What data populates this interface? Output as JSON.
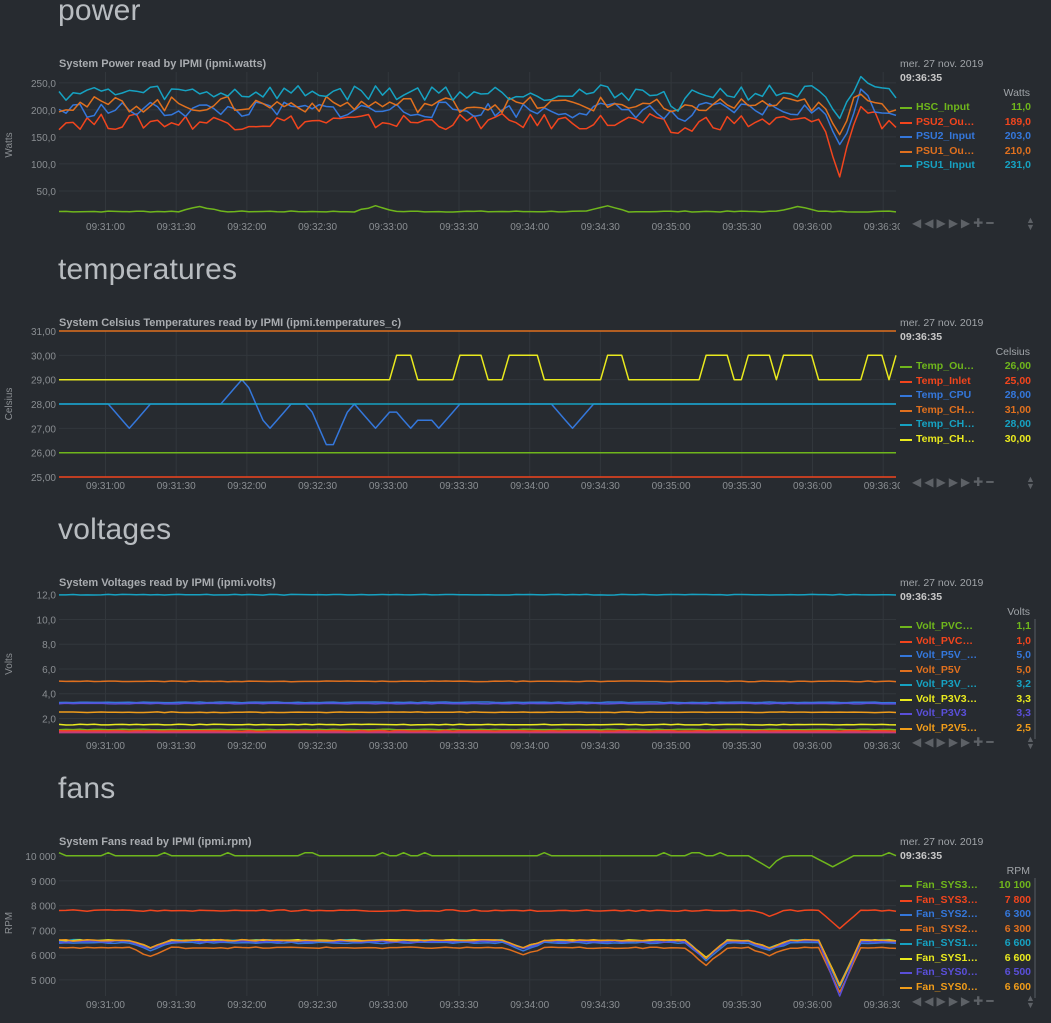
{
  "legend_date": "mer. 27 nov. 2019",
  "legend_time": "09:36:35",
  "time_ticks": [
    "09:31:00",
    "09:31:30",
    "09:32:00",
    "09:32:30",
    "09:33:00",
    "09:33:30",
    "09:34:00",
    "09:34:30",
    "09:35:00",
    "09:35:30",
    "09:36:00",
    "09:36:30"
  ],
  "colors": {
    "green": "#6fb61c",
    "red": "#f2451d",
    "blue": "#3477db",
    "orange": "#e0701e",
    "teal": "#16a2c2",
    "yellow": "#eaea1e",
    "purple": "#5a4fd9",
    "amber": "#f09c1a"
  },
  "toolbox_icons": [
    "rewind-icon",
    "play-icon",
    "fast-forward-icon",
    "zoom-in-icon",
    "zoom-out-icon"
  ],
  "sections": [
    {
      "id": "power",
      "title": "power"
    },
    {
      "id": "temperatures",
      "title": "temperatures"
    },
    {
      "id": "voltages",
      "title": "voltages"
    },
    {
      "id": "fans",
      "title": "fans"
    }
  ],
  "chart_data": [
    {
      "id": "power",
      "type": "line",
      "title": "System Power read by IPMI (ipmi.watts)",
      "ylabel": "Watts",
      "units": "Watts",
      "ylim": [
        0,
        270
      ],
      "yticks": [
        50,
        100,
        150,
        200,
        250
      ],
      "ytick_labels": [
        "50,0",
        "100,0",
        "150,0",
        "200,0",
        "250,0"
      ],
      "x_range": [
        "09:30:40",
        "09:36:35"
      ],
      "series": [
        {
          "name": "HSC_Input",
          "label": "HSC_Input",
          "value": "11,0",
          "color": "green",
          "base": 11
        },
        {
          "name": "PSU2_Output",
          "label": "PSU2_Ou…",
          "value": "189,0",
          "color": "red",
          "base": 178
        },
        {
          "name": "PSU2_Input",
          "label": "PSU2_Input",
          "value": "203,0",
          "color": "blue",
          "base": 200
        },
        {
          "name": "PSU1_Output",
          "label": "PSU1_Ou…",
          "value": "210,0",
          "color": "orange",
          "base": 210
        },
        {
          "name": "PSU1_Input",
          "label": "PSU1_Input",
          "value": "231,0",
          "color": "teal",
          "base": 232
        }
      ]
    },
    {
      "id": "temperatures",
      "type": "line",
      "title": "System Celsius Temperatures read by IPMI (ipmi.temperatures_c)",
      "ylabel": "Celsius",
      "units": "Celsius",
      "ylim": [
        25,
        31
      ],
      "yticks": [
        25,
        26,
        27,
        28,
        29,
        30,
        31
      ],
      "ytick_labels": [
        "25,00",
        "26,00",
        "27,00",
        "28,00",
        "29,00",
        "30,00",
        "31,00"
      ],
      "series": [
        {
          "name": "Temp_Outlet",
          "label": "Temp_Ou…",
          "value": "26,00",
          "color": "green",
          "base": 26
        },
        {
          "name": "Temp_Inlet",
          "label": "Temp_Inlet",
          "value": "25,00",
          "color": "red",
          "base": 25
        },
        {
          "name": "Temp_CPU",
          "label": "Temp_CPU",
          "value": "28,00",
          "color": "blue",
          "base": 28
        },
        {
          "name": "Temp_CH_1",
          "label": "Temp_CH…",
          "value": "31,00",
          "color": "orange",
          "base": 31
        },
        {
          "name": "Temp_CH_2",
          "label": "Temp_CH…",
          "value": "28,00",
          "color": "teal",
          "base": 28
        },
        {
          "name": "Temp_CH_3",
          "label": "Temp_CH…",
          "value": "30,00",
          "color": "yellow",
          "base": 29
        }
      ]
    },
    {
      "id": "voltages",
      "type": "line",
      "title": "System Voltages read by IPMI (ipmi.volts)",
      "ylabel": "Volts",
      "units": "Volts",
      "ylim": [
        0.5,
        12.3
      ],
      "yticks": [
        2,
        4,
        6,
        8,
        10,
        12
      ],
      "ytick_labels": [
        "2,0",
        "4,0",
        "6,0",
        "8,0",
        "10,0",
        "12,0"
      ],
      "series": [
        {
          "name": "Volt_PVCCIN_1",
          "label": "Volt_PVC…",
          "value": "1,1",
          "color": "green",
          "base": 1.1
        },
        {
          "name": "Volt_PVCCIN_2",
          "label": "Volt_PVC…",
          "value": "1,0",
          "color": "red",
          "base": 1.0
        },
        {
          "name": "Volt_P5V_AUX",
          "label": "Volt_P5V_…",
          "value": "5,0",
          "color": "blue",
          "base": 3.3
        },
        {
          "name": "Volt_P5V",
          "label": "Volt_P5V",
          "value": "5,0",
          "color": "orange",
          "base": 5.0
        },
        {
          "name": "Volt_P3V_BAT",
          "label": "Volt_P3V_…",
          "value": "3,2",
          "color": "teal",
          "base": 12.0
        },
        {
          "name": "Volt_P3V3_AUX",
          "label": "Volt_P3V3…",
          "value": "3,3",
          "color": "yellow",
          "base": 1.5
        },
        {
          "name": "Volt_P3V3",
          "label": "Volt_P3V3",
          "value": "3,3",
          "color": "purple",
          "base": 3.2
        },
        {
          "name": "Volt_P2V5",
          "label": "Volt_P2V5…",
          "value": "2,5",
          "color": "amber",
          "base": 2.5
        }
      ]
    },
    {
      "id": "fans",
      "type": "line",
      "title": "System Fans read by IPMI (ipmi.rpm)",
      "ylabel": "RPM",
      "units": "RPM",
      "ylim": [
        4350,
        10250
      ],
      "yticks": [
        5000,
        6000,
        7000,
        8000,
        9000,
        10000
      ],
      "ytick_labels": [
        "5 000",
        "6 000",
        "7 000",
        "8 000",
        "9 000",
        "10 000"
      ],
      "series": [
        {
          "name": "Fan_SYS3_1",
          "label": "Fan_SYS3…",
          "value": "10 100",
          "color": "green",
          "base": 10050
        },
        {
          "name": "Fan_SYS3_2",
          "label": "Fan_SYS3…",
          "value": "7 800",
          "color": "red",
          "base": 7800
        },
        {
          "name": "Fan_SYS2_1",
          "label": "Fan_SYS2…",
          "value": "6 300",
          "color": "blue",
          "base": 6500
        },
        {
          "name": "Fan_SYS2_2",
          "label": "Fan_SYS2…",
          "value": "6 300",
          "color": "orange",
          "base": 6300
        },
        {
          "name": "Fan_SYS1_1",
          "label": "Fan_SYS1…",
          "value": "6 600",
          "color": "teal",
          "base": 6600
        },
        {
          "name": "Fan_SYS1_2",
          "label": "Fan_SYS1…",
          "value": "6 600",
          "color": "yellow",
          "base": 6600
        },
        {
          "name": "Fan_SYS0_1",
          "label": "Fan_SYS0…",
          "value": "6 500",
          "color": "purple",
          "base": 6550
        },
        {
          "name": "Fan_SYS0_2",
          "label": "Fan_SYS0…",
          "value": "6 600",
          "color": "amber",
          "base": 6600
        }
      ]
    }
  ]
}
